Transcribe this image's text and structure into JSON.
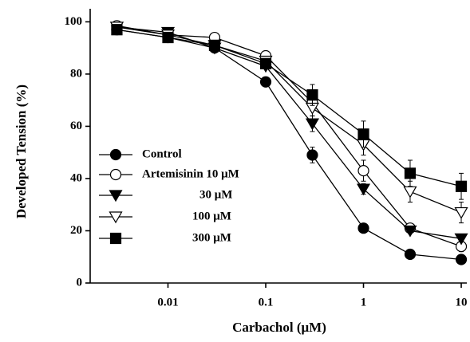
{
  "chart_data": {
    "type": "line",
    "xscale": "log",
    "x_label": "Carbachol (μM)",
    "y_label": "Developed Tension (%)",
    "x": [
      0.003,
      0.01,
      0.03,
      0.1,
      0.3,
      1,
      3,
      10
    ],
    "xlim": [
      0.0016,
      11.4
    ],
    "xticks": [
      0.01,
      0.1,
      1,
      10
    ],
    "ylim": [
      0,
      105
    ],
    "yticks": [
      0,
      20,
      40,
      60,
      80,
      100
    ],
    "series": [
      {
        "name": "Control",
        "color": "#000000",
        "marker": "circle",
        "filled": true,
        "values": [
          97,
          94,
          90,
          77,
          49,
          21,
          11,
          9
        ],
        "errors": [
          1,
          1,
          1,
          1.5,
          3,
          1,
          1,
          1
        ]
      },
      {
        "name": "Artemisinin 10 μM",
        "color": "#000000",
        "marker": "circle",
        "filled": false,
        "values": [
          98.5,
          95,
          94,
          87,
          69,
          43,
          21,
          14
        ],
        "errors": [
          1,
          1,
          1,
          1,
          3,
          4,
          1,
          2
        ]
      },
      {
        "name": "30 μM",
        "color": "#000000",
        "marker": "triangle",
        "filled": true,
        "values": [
          98,
          96,
          90,
          83,
          61,
          36,
          20,
          17
        ],
        "errors": [
          1,
          1,
          1,
          1,
          3,
          2,
          1,
          1
        ]
      },
      {
        "name": "100 μM",
        "color": "#000000",
        "marker": "triangle",
        "filled": false,
        "values": [
          98,
          95,
          91,
          85,
          67,
          53,
          35,
          27
        ],
        "errors": [
          1,
          1,
          1,
          1,
          3,
          4,
          4,
          4
        ]
      },
      {
        "name": "300 μM",
        "color": "#000000",
        "marker": "square",
        "filled": true,
        "values": [
          97,
          94,
          91,
          84,
          72,
          57,
          42,
          37
        ],
        "errors": [
          1,
          1,
          1,
          1,
          4,
          5,
          5,
          5
        ]
      }
    ]
  }
}
